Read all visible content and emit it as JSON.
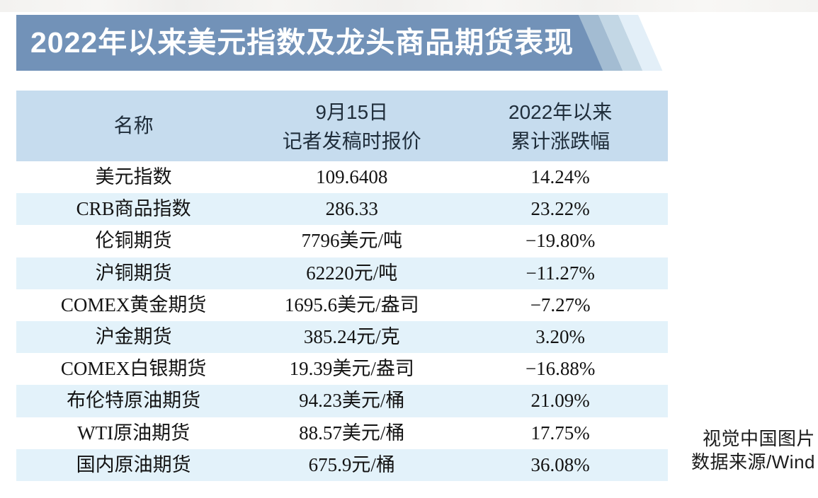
{
  "banner": {
    "title": "2022年以来美元指数及龙头商品期货表现",
    "bg_color": "#7292b8",
    "stripe_colors": [
      "#a3bcd2",
      "#c3d7e5",
      "#e3eff8"
    ],
    "text_color": "#ffffff"
  },
  "table": {
    "header": {
      "col1": "名称",
      "col2_line1": "9月15日",
      "col2_line2": "记者发稿时报价",
      "col3_line1": "2022年以来",
      "col3_line2": "累计涨跌幅",
      "bg_color": "#c6dcee"
    },
    "alt_row_color": "#e3f2fa",
    "rows": [
      {
        "name": "美元指数",
        "price": "109.6408",
        "change": "14.24%"
      },
      {
        "name": "CRB商品指数",
        "price": "286.33",
        "change": "23.22%"
      },
      {
        "name": "伦铜期货",
        "price": "7796美元/吨",
        "change": "−19.80%"
      },
      {
        "name": "沪铜期货",
        "price": "62220元/吨",
        "change": "−11.27%"
      },
      {
        "name": "COMEX黄金期货",
        "price": "1695.6美元/盎司",
        "change": "−7.27%"
      },
      {
        "name": "沪金期货",
        "price": "385.24元/克",
        "change": "3.20%"
      },
      {
        "name": "COMEX白银期货",
        "price": "19.39美元/盎司",
        "change": "−16.88%"
      },
      {
        "name": "布伦特原油期货",
        "price": "94.23美元/桶",
        "change": "21.09%"
      },
      {
        "name": "WTI原油期货",
        "price": "88.57美元/桶",
        "change": "17.75%"
      },
      {
        "name": "国内原油期货",
        "price": "675.9元/桶",
        "change": "36.08%"
      }
    ]
  },
  "credit": {
    "line1": "视觉中国图片",
    "line2": "数据来源/Wind"
  },
  "chart_data": {
    "type": "table",
    "title": "2022年以来美元指数及龙头商品期货表现",
    "columns": [
      "名称",
      "9月15日记者发稿时报价",
      "2022年以来累计涨跌幅"
    ],
    "rows": [
      [
        "美元指数",
        "109.6408",
        "14.24%"
      ],
      [
        "CRB商品指数",
        "286.33",
        "23.22%"
      ],
      [
        "伦铜期货",
        "7796美元/吨",
        "−19.80%"
      ],
      [
        "沪铜期货",
        "62220元/吨",
        "−11.27%"
      ],
      [
        "COMEX黄金期货",
        "1695.6美元/盎司",
        "−7.27%"
      ],
      [
        "沪金期货",
        "385.24元/克",
        "3.20%"
      ],
      [
        "COMEX白银期货",
        "19.39美元/盎司",
        "−16.88%"
      ],
      [
        "布伦特原油期货",
        "94.23美元/桶",
        "21.09%"
      ],
      [
        "WTI原油期货",
        "88.57美元/桶",
        "17.75%"
      ],
      [
        "国内原油期货",
        "675.9元/桶",
        "36.08%"
      ]
    ],
    "cumulative_change_pct": [
      14.24,
      23.22,
      -19.8,
      -11.27,
      -7.27,
      3.2,
      -16.88,
      21.09,
      17.75,
      36.08
    ],
    "source": "数据来源/Wind",
    "image_credit": "视觉中国图片"
  }
}
